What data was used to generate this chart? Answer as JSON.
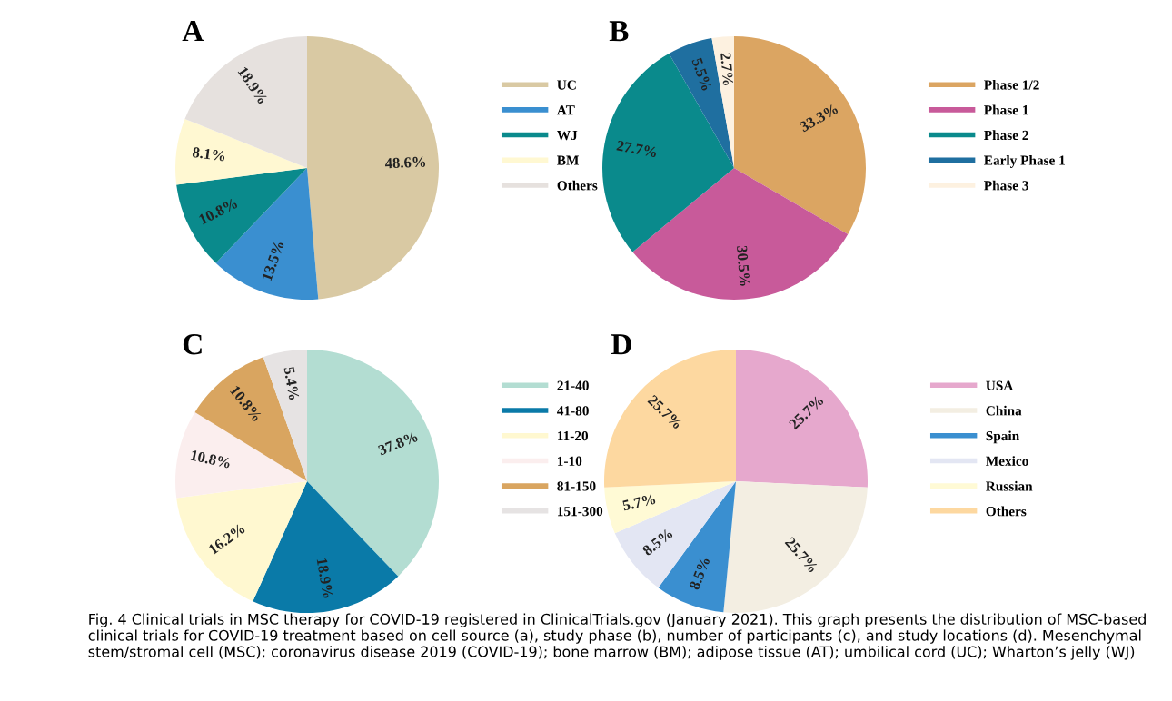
{
  "chart_data": [
    {
      "type": "pie",
      "title": "A",
      "legend": "right",
      "categories": [
        "UC",
        "AT",
        "WJ",
        "BM",
        "Others"
      ],
      "values": [
        48.6,
        13.5,
        10.8,
        8.1,
        18.9
      ],
      "value_labels": [
        "48.6%",
        "13.5%",
        "10.8%",
        "8.1%",
        "18.9%"
      ],
      "colors": [
        "#d9c9a3",
        "#3a8fd0",
        "#0a8a8c",
        "#fff8d2",
        "#e6e1de"
      ]
    },
    {
      "type": "pie",
      "title": "B",
      "legend": "right",
      "categories": [
        "Phase 1/2",
        "Phase 1",
        "Phase 2",
        "Early Phase 1",
        "Phase 3"
      ],
      "values": [
        33.3,
        30.5,
        27.7,
        5.5,
        2.7
      ],
      "value_labels": [
        "33.3%",
        "30.5%",
        "27.7%",
        "5.5%",
        "2.7%"
      ],
      "colors": [
        "#dba562",
        "#c85a9a",
        "#0a8a8c",
        "#1f6fa0",
        "#fdf1e0"
      ]
    },
    {
      "type": "pie",
      "title": "C",
      "legend": "right",
      "categories": [
        "21-40",
        "41-80",
        "11-20",
        "1-10",
        "81-150",
        "151-300"
      ],
      "values": [
        37.8,
        18.9,
        16.2,
        10.8,
        10.8,
        5.4
      ],
      "value_labels": [
        "37.8%",
        "18.9%",
        "16.2%",
        "10.8%",
        "10.8%",
        "5.4%"
      ],
      "colors": [
        "#b3ddd2",
        "#0a7aa8",
        "#fff8d0",
        "#fbeeee",
        "#d9a560",
        "#e6e3e3"
      ]
    },
    {
      "type": "pie",
      "title": "D",
      "legend": "right",
      "categories": [
        "USA",
        "China",
        "Spain",
        "Mexico",
        "Russian",
        "Others"
      ],
      "values": [
        25.7,
        25.7,
        8.5,
        8.5,
        5.7,
        25.7
      ],
      "value_labels": [
        "25.7%",
        "25.7%",
        "8.5%",
        "8.5%",
        "5.7%",
        "25.7%"
      ],
      "colors": [
        "#e6a8cd",
        "#f3eee2",
        "#3a8fd0",
        "#e3e6f3",
        "#fffad5",
        "#fdd8a0"
      ],
      "annotations": [
        "Fig. 4 Clinical trials in MSC therapy for COVID-19 registered in ClinicalTrials.gov (January 2021). This graph presents the distribution of MSC-based clinical trials for COVID-19 treatment based on cell source (a), study phase (b), number of participants (c), and study locations (d). Mesenchymal stem/stromal cell (MSC); coronavirus disease 2019 (COVID-19); bone marrow (BM); adipose tissue (AT); umbilical cord (UC); Wharton’s jelly (WJ)"
      ]
    }
  ]
}
